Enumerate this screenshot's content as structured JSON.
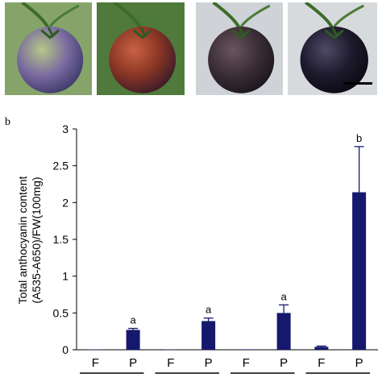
{
  "photos": [
    {
      "name": "tomato-photo-1",
      "fill": "#7a6ba0",
      "shade": "#3e3a6a",
      "highlight": "#b6c886",
      "bg": "#86a46a"
    },
    {
      "name": "tomato-photo-2",
      "fill": "#8a3524",
      "shade": "#3a1c2a",
      "highlight": "#c96244",
      "bg": "#4f7a3c"
    },
    {
      "name": "tomato-photo-3",
      "fill": "#3b2e36",
      "shade": "#1c161d",
      "highlight": "#6a5560",
      "bg": "#cfd3d8"
    },
    {
      "name": "tomato-photo-4",
      "fill": "#1e1a2c",
      "shade": "#0c0a14",
      "highlight": "#4e4a66",
      "bg": "#d7dadd"
    }
  ],
  "panel_label": "b",
  "chart_data": {
    "type": "bar",
    "categories": [
      "F",
      "P",
      "F",
      "P",
      "F",
      "P",
      "F",
      "P"
    ],
    "values": [
      0.005,
      0.27,
      0.004,
      0.39,
      0.006,
      0.5,
      0.04,
      2.14
    ],
    "errors": [
      0.0,
      0.02,
      0.0,
      0.04,
      0.0,
      0.11,
      0.01,
      0.62
    ],
    "significance": [
      "",
      "a",
      "",
      "a",
      "",
      "a",
      "",
      "b"
    ],
    "ylabel_lines": [
      "Total anthocyanin content",
      "(A535-A650)/FW(100mg)"
    ],
    "ylim": [
      0,
      3
    ],
    "yticks": [
      0,
      0.5,
      1,
      1.5,
      2,
      2.5,
      3
    ],
    "ytick_labels": [
      "0",
      "0.5",
      "1",
      "1.5",
      "2",
      "2.5",
      "3"
    ],
    "bar_color": "#16186e",
    "grid": false
  }
}
